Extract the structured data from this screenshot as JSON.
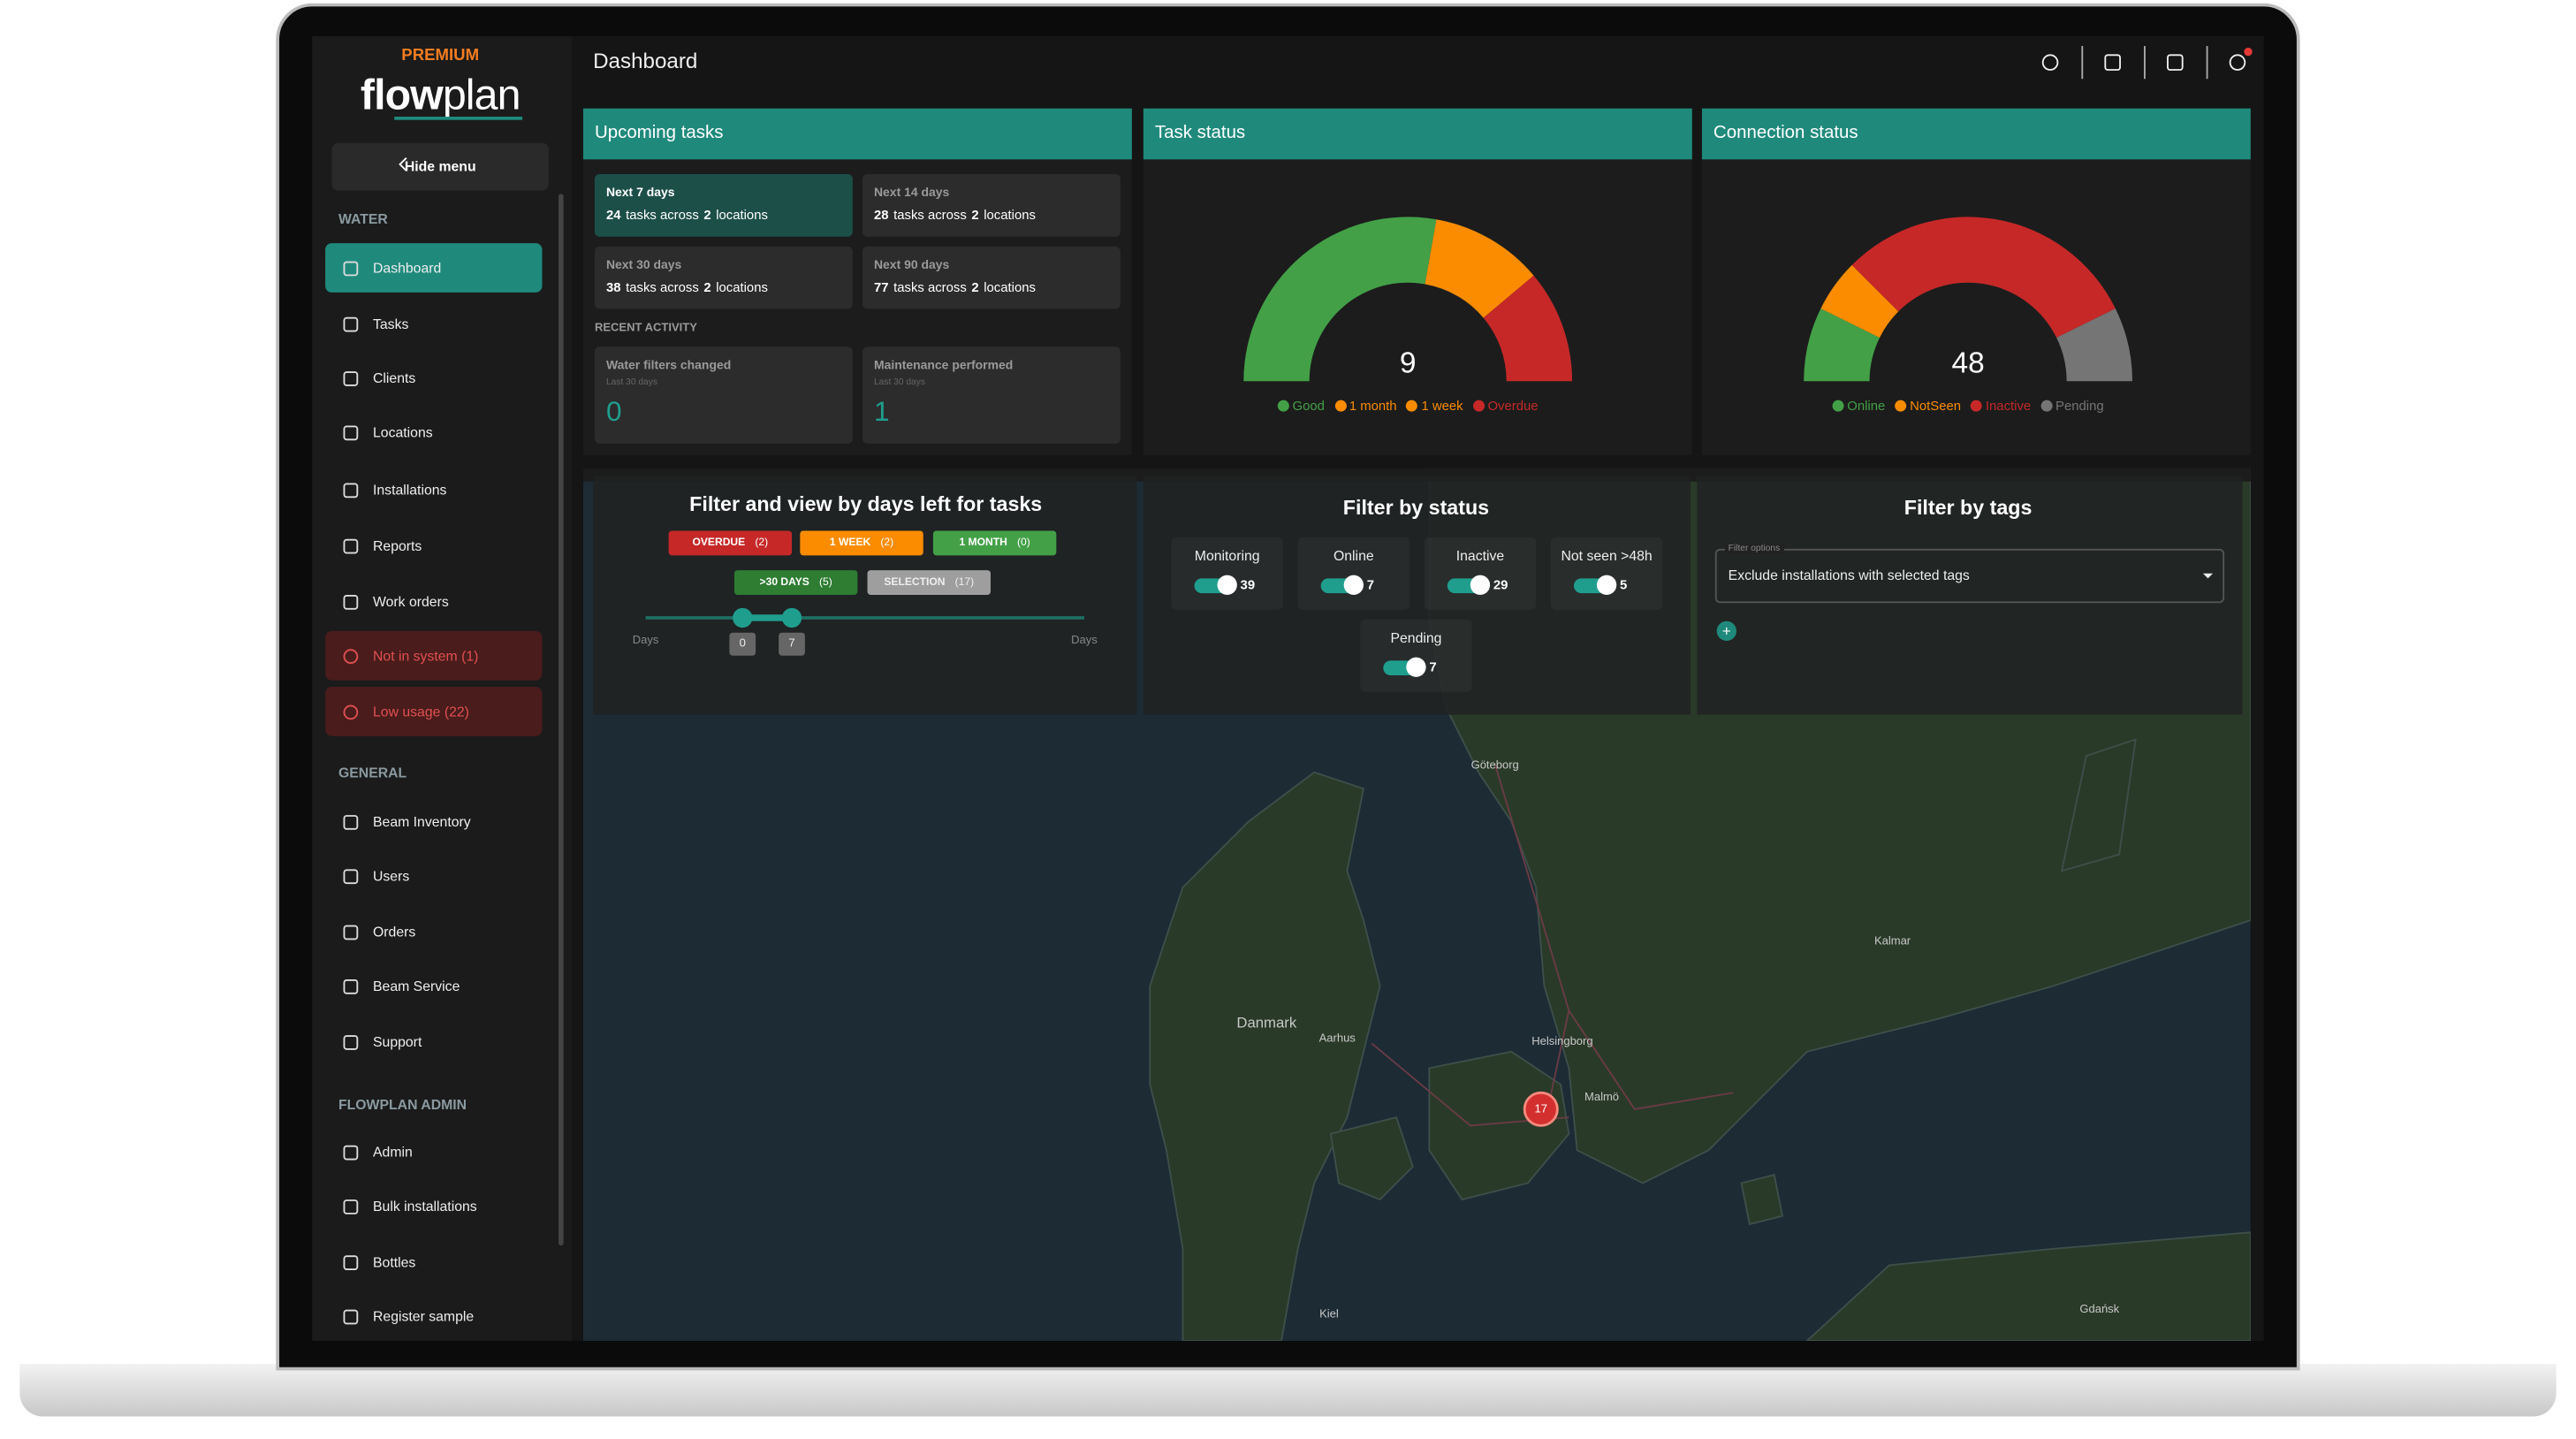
{
  "header": {
    "badge": "PREMIUM",
    "logo_a": "flow",
    "logo_b": "plan",
    "page_title": "Dashboard"
  },
  "sidebar": {
    "hide_menu": "Hide menu",
    "sections": [
      {
        "title": "WATER",
        "items": [
          "Dashboard",
          "Tasks",
          "Clients",
          "Locations",
          "Installations",
          "Reports",
          "Work orders",
          "Not in system (1)",
          "Low usage (22)"
        ]
      },
      {
        "title": "GENERAL",
        "items": [
          "Beam Inventory",
          "Users",
          "Orders",
          "Beam Service",
          "Support"
        ]
      },
      {
        "title": "FLOWPLAN ADMIN",
        "items": [
          "Admin",
          "Bulk installations",
          "Bottles",
          "Register sample"
        ]
      }
    ]
  },
  "upcoming_tasks": {
    "title": "Upcoming tasks",
    "periods": [
      {
        "label": "Next 7 days",
        "count": 24,
        "unit": "tasks across",
        "locations": 2,
        "locations_unit": "locations"
      },
      {
        "label": "Next 14 days",
        "count": 28,
        "unit": "tasks across",
        "locations": 2,
        "locations_unit": "locations"
      },
      {
        "label": "Next 30 days",
        "count": 38,
        "unit": "tasks across",
        "locations": 2,
        "locations_unit": "locations"
      },
      {
        "label": "Next 90 days",
        "count": 77,
        "unit": "tasks across",
        "locations": 2,
        "locations_unit": "locations"
      }
    ],
    "recent_title": "RECENT ACTIVITY",
    "activity": [
      {
        "label": "Water filters changed",
        "sub": "Last 30 days",
        "value": 0
      },
      {
        "label": "Maintenance performed",
        "sub": "Last 30 days",
        "value": 1
      }
    ]
  },
  "task_status": {
    "title": "Task status",
    "center_value": 9,
    "segments": [
      {
        "name": "Good",
        "color": "#43a047",
        "value": 5
      },
      {
        "name": "1 month",
        "color": "#fb8c00",
        "value": 0
      },
      {
        "name": "1 week",
        "color": "#fb8c00",
        "value": 2
      },
      {
        "name": "Overdue",
        "color": "#c62828",
        "value": 2
      }
    ]
  },
  "connection_status": {
    "title": "Connection status",
    "center_value": 48,
    "segments": [
      {
        "name": "Online",
        "color": "#43a047",
        "value": 7
      },
      {
        "name": "NotSeen",
        "color": "#fb8c00",
        "value": 5
      },
      {
        "name": "Inactive",
        "color": "#c62828",
        "value": 29
      },
      {
        "name": "Pending",
        "color": "#757575",
        "value": 7
      }
    ]
  },
  "filter_days": {
    "title": "Filter and view by days left for tasks",
    "buttons": [
      {
        "label": "OVERDUE",
        "count": "(2)",
        "color": "#c62828"
      },
      {
        "label": "1 WEEK",
        "count": "(2)",
        "color": "#fb8c00"
      },
      {
        "label": "1 MONTH",
        "count": "(0)",
        "color": "#43a047"
      },
      {
        "label": ">30 DAYS",
        "count": "(5)",
        "color": "#2e7d32"
      },
      {
        "label": "SELECTION",
        "count": "(17)",
        "color": "#9e9e9e"
      }
    ],
    "axis_left": "Days",
    "axis_right": "Days",
    "range_min": 0,
    "range_max": 7
  },
  "filter_status": {
    "title": "Filter by status",
    "items": [
      {
        "label": "Monitoring",
        "count": 39
      },
      {
        "label": "Online",
        "count": 7
      },
      {
        "label": "Inactive",
        "count": 29
      },
      {
        "label": "Not seen >48h",
        "count": 5
      },
      {
        "label": "Pending",
        "count": 7
      }
    ]
  },
  "filter_tags": {
    "title": "Filter by tags",
    "field_label": "Filter options",
    "select": "Exclude installations with selected tags",
    "add": "+"
  },
  "map": {
    "cluster": 17,
    "labels": [
      "Göteborg",
      "Danmark",
      "Helsingborg",
      "Kalmar",
      "Gdańsk",
      "Kiel",
      "Aarhus",
      "Malmö"
    ]
  }
}
